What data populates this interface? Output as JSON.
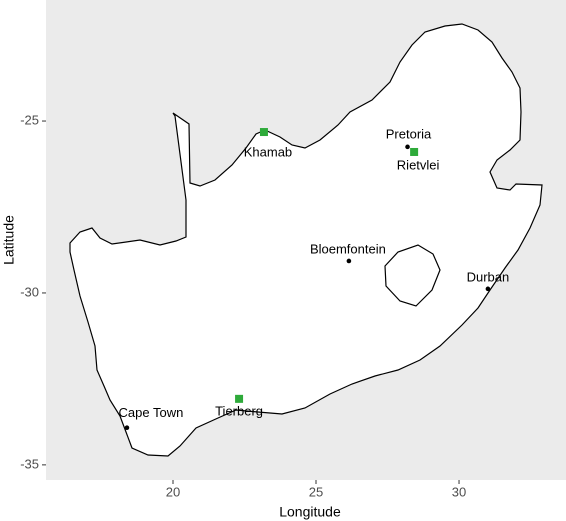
{
  "chart_data": {
    "type": "map",
    "xlabel": "Longitude",
    "ylabel": "Latitude",
    "xlim": [
      15.56,
      33.74
    ],
    "ylim": [
      -35.44,
      -21.48
    ],
    "xticks": [
      20,
      25,
      30
    ],
    "yticks": [
      -35,
      -30,
      -25
    ],
    "grid": false,
    "background": "#ebebeb",
    "land_color": "#ffffff",
    "points": [
      {
        "label": "Pretoria",
        "x": 28.2,
        "y": -25.75,
        "color": "#000000",
        "shape": "circle"
      },
      {
        "label": "Rietvlei",
        "x": 28.43,
        "y": -25.9,
        "color": "#2eaa3a",
        "shape": "square"
      },
      {
        "label": "Khamab",
        "x": 23.18,
        "y": -25.32,
        "color": "#2eaa3a",
        "shape": "square"
      },
      {
        "label": "Bloemfontein",
        "x": 26.15,
        "y": -29.07,
        "color": "#000000",
        "shape": "circle"
      },
      {
        "label": "Durban",
        "x": 31.01,
        "y": -29.88,
        "color": "#000000",
        "shape": "circle"
      },
      {
        "label": "Cape Town",
        "x": 18.39,
        "y": -33.92,
        "color": "#000000",
        "shape": "circle"
      },
      {
        "label": "Tierberg",
        "x": 22.31,
        "y": -33.08,
        "color": "#2eaa3a",
        "shape": "square"
      }
    ]
  }
}
